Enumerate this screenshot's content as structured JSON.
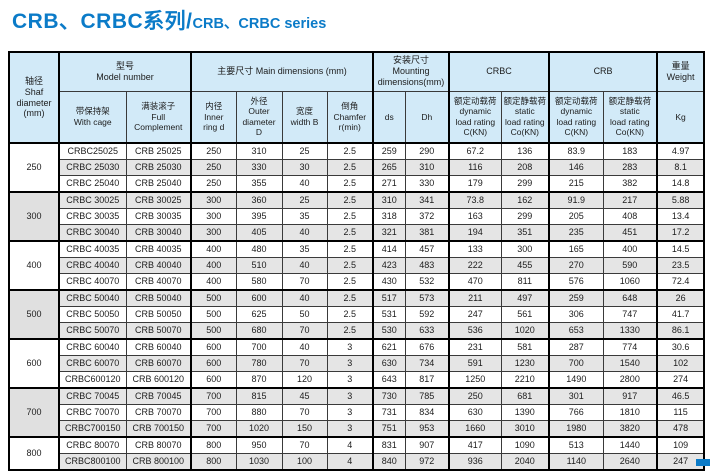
{
  "page": {
    "title_cn": "CRB、CRBC系列/",
    "title_en": "CRB、CRBC series",
    "accent_color": "#0b7bc8",
    "header_bg": "#d2eaf8",
    "stripe_color": "#e5e5e5"
  },
  "table": {
    "header": {
      "shaft_diameter": "轴径\nShaf\ndiameter\n(mm)",
      "model_number": "型号\nModel number",
      "with_cage": "带保持架\nWith cage",
      "full_complement": "满装滚子\nFull\nComplement",
      "main_dimensions": "主要尺寸 Main dimensions (mm)",
      "inner_ring": "内径\nInner\nring d",
      "outer_diameter": "外径\nOuter\ndiameter\nD",
      "width_b": "宽度\nwidth B",
      "chamfer": "倒角\nChamfer\nr(min)",
      "mounting": "安装尺寸\nMounting\ndimensions(mm)",
      "ds": "ds",
      "dh": "Dh",
      "crbc": "CRBC",
      "crb": "CRB",
      "dynamic_rating": "额定动载荷\ndynamic\nload rating\nC(KN)",
      "static_rating": "额定静载荷\nstatic\nload rating\nCo(KN)",
      "weight": "重量\nWeight",
      "kg": "Kg"
    },
    "column_keys": [
      "with_cage",
      "full_complement",
      "d",
      "D",
      "B",
      "r",
      "ds",
      "Dh",
      "crbc_c",
      "crbc_co",
      "crb_c",
      "crb_co",
      "kg"
    ],
    "groups": [
      {
        "diameter": "250",
        "shaded": false,
        "rows": [
          [
            "CRBC25025",
            "CRB 25025",
            "250",
            "310",
            "25",
            "2.5",
            "259",
            "290",
            "67.2",
            "136",
            "83.9",
            "183",
            "4.97"
          ],
          [
            "CRBC 25030",
            "CRB 25030",
            "250",
            "330",
            "30",
            "2.5",
            "265",
            "310",
            "116",
            "208",
            "146",
            "283",
            "8.1"
          ],
          [
            "CRBC 25040",
            "CRB 25040",
            "250",
            "355",
            "40",
            "2.5",
            "271",
            "330",
            "179",
            "299",
            "215",
            "382",
            "14.8"
          ]
        ]
      },
      {
        "diameter": "300",
        "shaded": true,
        "rows": [
          [
            "CRBC 30025",
            "CRB 30025",
            "300",
            "360",
            "25",
            "2.5",
            "310",
            "341",
            "73.8",
            "162",
            "91.9",
            "217",
            "5.88"
          ],
          [
            "CRBC 30035",
            "CRB 30035",
            "300",
            "395",
            "35",
            "2.5",
            "318",
            "372",
            "163",
            "299",
            "205",
            "408",
            "13.4"
          ],
          [
            "CRBC 30040",
            "CRB 30040",
            "300",
            "405",
            "40",
            "2.5",
            "321",
            "381",
            "194",
            "351",
            "235",
            "451",
            "17.2"
          ]
        ]
      },
      {
        "diameter": "400",
        "shaded": false,
        "rows": [
          [
            "CRBC 40035",
            "CRB 40035",
            "400",
            "480",
            "35",
            "2.5",
            "414",
            "457",
            "133",
            "300",
            "165",
            "400",
            "14.5"
          ],
          [
            "CRBC 40040",
            "CRB 40040",
            "400",
            "510",
            "40",
            "2.5",
            "423",
            "483",
            "222",
            "455",
            "270",
            "590",
            "23.5"
          ],
          [
            "CRBC 40070",
            "CRB 40070",
            "400",
            "580",
            "70",
            "2.5",
            "430",
            "532",
            "470",
            "811",
            "576",
            "1060",
            "72.4"
          ]
        ]
      },
      {
        "diameter": "500",
        "shaded": true,
        "rows": [
          [
            "CRBC 50040",
            "CRB 50040",
            "500",
            "600",
            "40",
            "2.5",
            "517",
            "573",
            "211",
            "497",
            "259",
            "648",
            "26"
          ],
          [
            "CRBC 50050",
            "CRB 50050",
            "500",
            "625",
            "50",
            "2.5",
            "531",
            "592",
            "247",
            "561",
            "306",
            "747",
            "41.7"
          ],
          [
            "CRBC 50070",
            "CRB 50070",
            "500",
            "680",
            "70",
            "2.5",
            "530",
            "633",
            "536",
            "1020",
            "653",
            "1330",
            "86.1"
          ]
        ]
      },
      {
        "diameter": "600",
        "shaded": false,
        "rows": [
          [
            "CRBC 60040",
            "CRB 60040",
            "600",
            "700",
            "40",
            "3",
            "621",
            "676",
            "231",
            "581",
            "287",
            "774",
            "30.6"
          ],
          [
            "CRBC 60070",
            "CRB 60070",
            "600",
            "780",
            "70",
            "3",
            "630",
            "734",
            "591",
            "1230",
            "700",
            "1540",
            "102"
          ],
          [
            "CRBC600120",
            "CRB 600120",
            "600",
            "870",
            "120",
            "3",
            "643",
            "817",
            "1250",
            "2210",
            "1490",
            "2800",
            "274"
          ]
        ]
      },
      {
        "diameter": "700",
        "shaded": true,
        "rows": [
          [
            "CRBC 70045",
            "CRB 70045",
            "700",
            "815",
            "45",
            "3",
            "730",
            "785",
            "250",
            "681",
            "301",
            "917",
            "46.5"
          ],
          [
            "CRBC 70070",
            "CRB 70070",
            "700",
            "880",
            "70",
            "3",
            "731",
            "834",
            "630",
            "1390",
            "766",
            "1810",
            "115"
          ],
          [
            "CRBC700150",
            "CRB 700150",
            "700",
            "1020",
            "150",
            "3",
            "751",
            "953",
            "1660",
            "3010",
            "1980",
            "3820",
            "478"
          ]
        ]
      },
      {
        "diameter": "800",
        "shaded": false,
        "rows": [
          [
            "CRBC 80070",
            "CRB 80070",
            "800",
            "950",
            "70",
            "4",
            "831",
            "907",
            "417",
            "1090",
            "513",
            "1440",
            "109"
          ],
          [
            "CRBC800100",
            "CRB 800100",
            "800",
            "1030",
            "100",
            "4",
            "840",
            "972",
            "936",
            "2040",
            "1140",
            "2640",
            "247"
          ]
        ]
      }
    ]
  }
}
